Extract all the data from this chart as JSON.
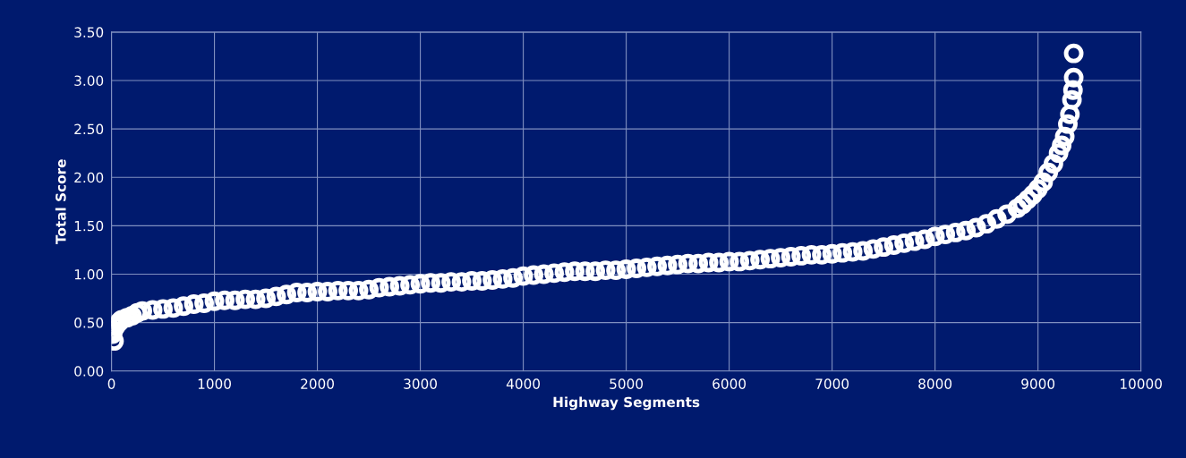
{
  "chart_data": {
    "type": "scatter",
    "xlabel": "Highway Segments",
    "ylabel": "Total Score",
    "x": [
      25,
      10,
      20,
      40,
      60,
      80,
      100,
      150,
      200,
      250,
      300,
      400,
      500,
      600,
      700,
      800,
      900,
      1000,
      1100,
      1200,
      1300,
      1400,
      1500,
      1600,
      1700,
      1800,
      1900,
      2000,
      2100,
      2200,
      2300,
      2400,
      2500,
      2600,
      2700,
      2800,
      2900,
      3000,
      3100,
      3200,
      3300,
      3400,
      3500,
      3600,
      3700,
      3800,
      3900,
      4000,
      4100,
      4200,
      4300,
      4400,
      4500,
      4600,
      4700,
      4800,
      4900,
      5000,
      5100,
      5200,
      5300,
      5400,
      5500,
      5600,
      5700,
      5800,
      5900,
      6000,
      6100,
      6200,
      6300,
      6400,
      6500,
      6600,
      6700,
      6800,
      6900,
      7000,
      7100,
      7200,
      7300,
      7400,
      7500,
      7600,
      7700,
      7800,
      7900,
      8000,
      8100,
      8200,
      8300,
      8400,
      8500,
      8600,
      8700,
      8800,
      8850,
      8900,
      8950,
      9000,
      9050,
      9100,
      9150,
      9200,
      9230,
      9260,
      9290,
      9310,
      9330,
      9340,
      9347,
      9347
    ],
    "series": [
      {
        "color": "#ffffff",
        "values": [
          0.31,
          0.38,
          0.42,
          0.46,
          0.49,
          0.51,
          0.53,
          0.55,
          0.57,
          0.6,
          0.62,
          0.63,
          0.64,
          0.65,
          0.67,
          0.69,
          0.7,
          0.72,
          0.73,
          0.73,
          0.74,
          0.74,
          0.75,
          0.77,
          0.79,
          0.81,
          0.81,
          0.82,
          0.82,
          0.83,
          0.83,
          0.83,
          0.84,
          0.86,
          0.87,
          0.88,
          0.89,
          0.9,
          0.91,
          0.91,
          0.92,
          0.92,
          0.93,
          0.93,
          0.94,
          0.95,
          0.96,
          0.98,
          0.99,
          1.0,
          1.01,
          1.02,
          1.03,
          1.03,
          1.03,
          1.04,
          1.04,
          1.05,
          1.06,
          1.07,
          1.08,
          1.09,
          1.1,
          1.11,
          1.11,
          1.12,
          1.12,
          1.13,
          1.13,
          1.14,
          1.15,
          1.16,
          1.17,
          1.18,
          1.19,
          1.2,
          1.2,
          1.21,
          1.22,
          1.23,
          1.24,
          1.26,
          1.28,
          1.3,
          1.32,
          1.34,
          1.36,
          1.39,
          1.41,
          1.43,
          1.45,
          1.48,
          1.52,
          1.57,
          1.62,
          1.68,
          1.72,
          1.77,
          1.82,
          1.88,
          1.95,
          2.05,
          2.14,
          2.25,
          2.33,
          2.42,
          2.55,
          2.65,
          2.8,
          2.9,
          3.03,
          3.28
        ]
      }
    ],
    "marker": "circle",
    "xlim": [
      0,
      10000
    ],
    "xticks": [
      0,
      1000,
      2000,
      3000,
      4000,
      5000,
      6000,
      7000,
      8000,
      9000,
      10000
    ],
    "ylim": [
      0,
      3.5
    ],
    "yticks": [
      {
        "value": 0,
        "label": "0.00"
      },
      {
        "value": 0.5,
        "label": "0.50"
      },
      {
        "value": 1,
        "label": "1.00"
      },
      {
        "value": 1.5,
        "label": "1.50"
      },
      {
        "value": 2,
        "label": "2.00"
      },
      {
        "value": 2.5,
        "label": "2.50"
      },
      {
        "value": 3,
        "label": "3.00"
      },
      {
        "value": 3.5,
        "label": "3.50"
      }
    ],
    "grid": true,
    "legend": false
  }
}
